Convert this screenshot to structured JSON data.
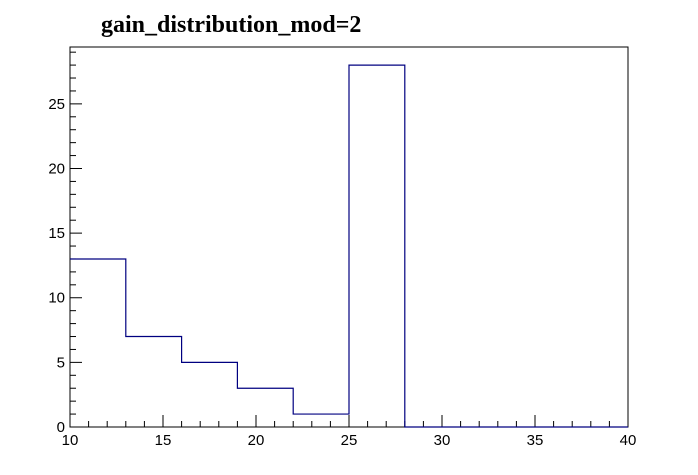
{
  "chart_data": {
    "type": "bar",
    "title": "gain_distribution_mod=2",
    "xlabel": "",
    "ylabel": "",
    "xlim": [
      10,
      40
    ],
    "ylim": [
      0,
      28
    ],
    "bin_edges": [
      10,
      13,
      16,
      19,
      22,
      25,
      28,
      31,
      34,
      37,
      40
    ],
    "values": [
      13,
      7,
      5,
      3,
      1,
      28,
      0,
      0,
      0,
      0
    ],
    "x_ticks": [
      10,
      15,
      20,
      25,
      30,
      35,
      40
    ],
    "y_ticks": [
      0,
      5,
      10,
      15,
      20,
      25
    ],
    "grid": false,
    "colors": {
      "line": "#000080",
      "axis": "#000000"
    }
  }
}
